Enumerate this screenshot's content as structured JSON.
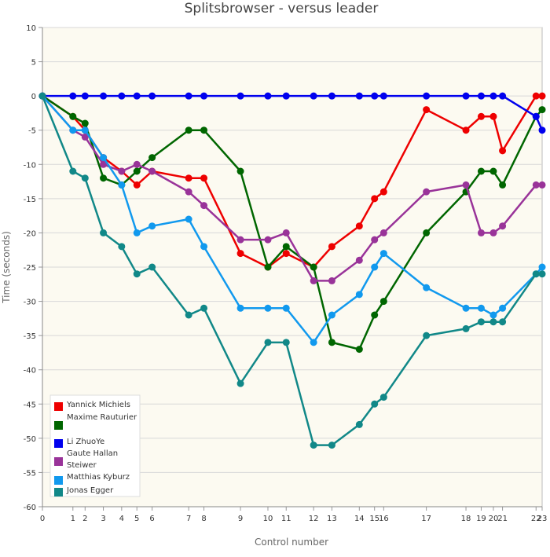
{
  "chart_data": {
    "type": "line",
    "title": "Splitsbrowser - versus leader",
    "xlabel": "Control number",
    "ylabel": "Time (seconds)",
    "xlim": [
      0,
      23
    ],
    "ylim": [
      -60,
      10
    ],
    "y_ticks": [
      10,
      5,
      0,
      -5,
      -10,
      -15,
      -20,
      -25,
      -30,
      -35,
      -40,
      -45,
      -50,
      -55,
      -60
    ],
    "x_ticks": [
      0,
      1,
      2,
      3,
      4,
      5,
      6,
      7,
      8,
      9,
      10,
      11,
      12,
      13,
      14,
      15,
      16,
      17,
      18,
      19,
      20,
      21,
      22,
      23
    ],
    "x": [
      0,
      1,
      2,
      3,
      4,
      5,
      6,
      7,
      8,
      9,
      10,
      11,
      12,
      13,
      14,
      15,
      16,
      17,
      18,
      19,
      20,
      21,
      22,
      23
    ],
    "x_positions": [
      0,
      1,
      1.4,
      2,
      2.6,
      3.1,
      3.6,
      4.8,
      5.3,
      6.5,
      7.4,
      8,
      8.9,
      9.5,
      10.4,
      10.9,
      11.2,
      12.6,
      13.9,
      14.4,
      14.8,
      15.1,
      16.2,
      16.4
    ],
    "plot_background": "#fcfaf1",
    "grid": true,
    "legend_position": "bottom-left",
    "series": [
      {
        "name": "Yannick Michiels",
        "color": "#ee0000",
        "values": [
          0,
          -3,
          -5,
          -9,
          -11,
          -13,
          -11,
          -12,
          -12,
          -23,
          -25,
          -23,
          -25,
          -22,
          -19,
          -15,
          -14,
          -2,
          -5,
          -3,
          -3,
          -8,
          0,
          0
        ]
      },
      {
        "name": "Maxime Rauturier",
        "color": "#006600",
        "values": [
          0,
          -3,
          -4,
          -12,
          -13,
          -11,
          -9,
          -5,
          -5,
          -11,
          -25,
          -22,
          -25,
          -36,
          -37,
          -32,
          -30,
          -20,
          -14,
          -11,
          -11,
          -13,
          -3,
          -2
        ]
      },
      {
        "name": "Li ZhuoYe",
        "color": "#0000ee",
        "values": [
          0,
          0,
          0,
          0,
          0,
          0,
          0,
          0,
          0,
          0,
          0,
          0,
          0,
          0,
          0,
          0,
          0,
          0,
          0,
          0,
          0,
          0,
          -3,
          -5
        ]
      },
      {
        "name": "Gaute Hallan Steiwer",
        "color": "#993399",
        "values": [
          0,
          -5,
          -6,
          -10,
          -11,
          -10,
          -11,
          -14,
          -16,
          -21,
          -21,
          -20,
          -27,
          -27,
          -24,
          -21,
          -20,
          -14,
          -13,
          -20,
          -20,
          -19,
          -13,
          -13
        ]
      },
      {
        "name": "Matthias Kyburz",
        "color": "#1199ee",
        "values": [
          0,
          -5,
          -5,
          -9,
          -13,
          -20,
          -19,
          -18,
          -22,
          -31,
          -31,
          -31,
          -36,
          -32,
          -29,
          -25,
          -23,
          -28,
          -31,
          -31,
          -32,
          -31,
          -26,
          -25
        ]
      },
      {
        "name": "Jonas Egger",
        "color": "#118888",
        "values": [
          0,
          -11,
          -12,
          -20,
          -22,
          -26,
          -25,
          -32,
          -31,
          -42,
          -36,
          -36,
          -51,
          -51,
          -48,
          -45,
          -44,
          -35,
          -34,
          -33,
          -33,
          -33,
          -26,
          -26
        ]
      }
    ]
  }
}
